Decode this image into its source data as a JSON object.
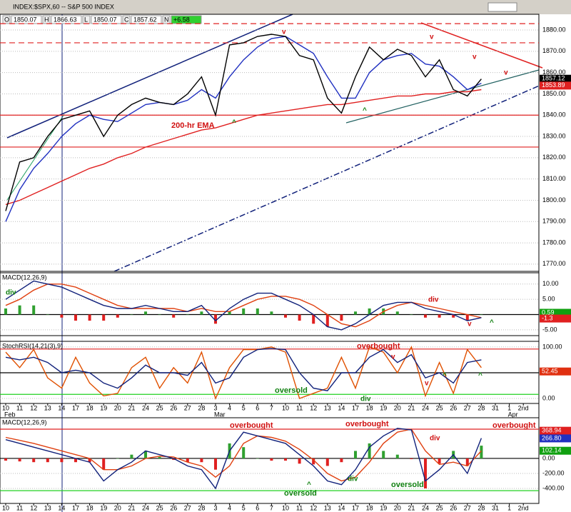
{
  "header": {
    "title": "INDEX:$SPX,60 -- S&P 500 INDEX",
    "quote": [
      {
        "label": "O",
        "value": 1850.07
      },
      {
        "label": "H",
        "value": 1866.63
      },
      {
        "label": "L",
        "value": 1850.07
      },
      {
        "label": "C",
        "value": 1857.62
      },
      {
        "label": "N",
        "value": 6.58,
        "value_label": "+6.58"
      }
    ]
  },
  "chart_data": [
    {
      "type": "line",
      "ylim": [
        1766.6,
        1887.4
      ],
      "yticks": [
        {
          "value": 1770,
          "label": "1770.00"
        },
        {
          "value": 1780,
          "label": "1780.00"
        },
        {
          "value": 1790,
          "label": "1790.00"
        },
        {
          "value": 1800,
          "label": "1800.00"
        },
        {
          "value": 1810,
          "label": "1810.00"
        },
        {
          "value": 1820,
          "label": "1820.00"
        },
        {
          "value": 1830,
          "label": "1830.00"
        },
        {
          "value": 1840,
          "label": "1840.00"
        },
        {
          "value": 1850,
          "label": "1850.00"
        },
        {
          "value": 1860,
          "label": "1860.00"
        },
        {
          "value": 1870,
          "label": "1870.00"
        },
        {
          "value": 1880,
          "label": "1880.00"
        }
      ],
      "grid": true,
      "series": [
        {
          "color": "#e02020",
          "style": "line",
          "values": [
            1798,
            1800,
            1803,
            1806,
            1809,
            1812,
            1815,
            1817,
            1820,
            1822,
            1825,
            1827,
            1829,
            1831,
            1833,
            1834,
            1836,
            1838,
            1840,
            1841,
            1842,
            1843,
            1844,
            1845,
            1845,
            1846,
            1847,
            1848,
            1849,
            1849,
            1850,
            1850,
            1851,
            1851,
            1852,
            null,
            null,
            null
          ]
        },
        {
          "color": "#2030c0",
          "style": "line",
          "values": [
            1790,
            1805,
            1815,
            1822,
            1830,
            1836,
            1840,
            1838,
            1837,
            1841,
            1845,
            1846,
            1845,
            1847,
            1852,
            1848,
            1858,
            1866,
            1872,
            1876,
            1877,
            1873,
            1869,
            1858,
            1848,
            1848,
            1860,
            1866,
            1868,
            1869,
            1864,
            1863,
            1858,
            1852,
            1855,
            null,
            null,
            null
          ]
        },
        {
          "color": "#000000",
          "style": "line",
          "values": [
            1795,
            1818,
            1820,
            1830,
            1838,
            1840,
            1842,
            1830,
            1840,
            1845,
            1848,
            1846,
            1845,
            1850,
            1858,
            1840,
            1873,
            1874,
            1877,
            1878,
            1877,
            1868,
            1866,
            1848,
            1841,
            1858,
            1872,
            1866,
            1871,
            1868,
            1858,
            1866,
            1852,
            1849,
            1857,
            null,
            null,
            null
          ]
        }
      ],
      "levels": [
        {
          "value": 1840,
          "color": "#e02020",
          "dashed": false
        },
        {
          "value": 1825,
          "color": "#e02020",
          "dashed": false
        },
        {
          "value": 1883,
          "color": "#e02020",
          "dashed": true
        },
        {
          "value": 1874,
          "color": "#e02020",
          "dashed": true
        }
      ],
      "flags": [
        {
          "value": 1857.12,
          "color": "#000000"
        },
        {
          "value": 1853.89,
          "color": "#e02020"
        }
      ],
      "annotations": [
        {
          "text": "200-hr EMA",
          "color": "#d01010"
        },
        {
          "text": "v",
          "color": "#d01010"
        },
        {
          "text": "v",
          "color": "#d01010"
        },
        {
          "text": "v",
          "color": "#d01010"
        },
        {
          "text": "v",
          "color": "#d01010"
        },
        {
          "text": "^",
          "color": "#108010"
        },
        {
          "text": "^",
          "color": "#108010"
        }
      ]
    },
    {
      "type": "line",
      "title": "MACD(12,26,9)",
      "ylim": [
        -6.9,
        13.7
      ],
      "yticks": [
        {
          "value": -5,
          "label": "-5.00"
        },
        {
          "value": 5,
          "label": "5.00"
        },
        {
          "value": 10,
          "label": "10.00"
        }
      ],
      "grid": true,
      "series": [
        {
          "color": "#30a030",
          "style": "bars",
          "values": [
            2,
            3,
            3,
            0,
            -1,
            -2,
            -2,
            -2,
            -1,
            0,
            1,
            0,
            -1,
            0,
            1,
            -3,
            1,
            2,
            2,
            1,
            -1,
            -2,
            -3,
            -4,
            -2,
            1,
            2,
            2,
            1,
            0,
            -1,
            -1,
            -1,
            -2,
            0,
            null,
            null,
            null
          ]
        },
        {
          "color": "#e04010",
          "style": "line",
          "values": [
            3,
            5,
            8,
            10,
            10,
            9,
            7,
            5,
            3,
            2,
            2,
            2,
            2,
            1,
            2,
            1,
            1,
            3,
            5,
            6,
            6,
            5,
            3,
            0,
            -3,
            -4,
            -2,
            1,
            3,
            4,
            3,
            2,
            1,
            0,
            -1,
            null,
            null,
            null
          ]
        },
        {
          "color": "#10207a",
          "style": "line",
          "values": [
            5,
            8,
            11,
            10,
            9,
            7,
            5,
            3,
            2,
            2,
            3,
            2,
            1,
            1,
            3,
            -2,
            2,
            5,
            7,
            7,
            5,
            3,
            0,
            -4,
            -5,
            -3,
            0,
            3,
            4,
            4,
            2,
            1,
            0,
            -2,
            -1,
            null,
            null,
            null
          ]
        }
      ],
      "levels": [
        {
          "value": 0,
          "color": "#000000",
          "dashed": false
        }
      ],
      "flags": [
        {
          "value": 0.59,
          "color": "#10a010"
        },
        {
          "value": -1.3,
          "color": "#e02020"
        }
      ],
      "annotations": [
        {
          "text": "div",
          "color": "#108010"
        },
        {
          "text": "div",
          "color": "#d01010"
        },
        {
          "text": "v",
          "color": "#d01010"
        },
        {
          "text": "^",
          "color": "#108010"
        }
      ]
    },
    {
      "type": "line",
      "title": "StochRSI(14,21(3),9)",
      "categories": [
        "10",
        "11",
        "12",
        "13",
        "14",
        "17",
        "18",
        "19",
        "20",
        "21",
        "24",
        "25",
        "26",
        "27",
        "28",
        "3",
        "4",
        "5",
        "6",
        "7",
        "10",
        "11",
        "12",
        "13",
        "14",
        "17",
        "18",
        "19",
        "20",
        "21",
        "24",
        "25",
        "26",
        "27",
        "28",
        "31",
        "1",
        "2nd"
      ],
      "month_labels": [
        "Feb",
        "Mar",
        "Apr"
      ],
      "ylim": [
        -9.7,
        111
      ],
      "yticks": [
        {
          "value": 0,
          "label": "0.00"
        },
        {
          "value": 100,
          "label": "100.00"
        }
      ],
      "grid": true,
      "series": [
        {
          "color": "#e05000",
          "style": "line",
          "values": [
            90,
            60,
            95,
            40,
            20,
            80,
            30,
            5,
            10,
            60,
            80,
            20,
            60,
            30,
            90,
            0,
            60,
            95,
            95,
            100,
            90,
            0,
            10,
            20,
            80,
            20,
            100,
            90,
            50,
            100,
            5,
            70,
            10,
            95,
            60,
            null,
            null,
            null
          ]
        },
        {
          "color": "#10207a",
          "style": "line",
          "values": [
            80,
            75,
            80,
            70,
            50,
            55,
            50,
            30,
            20,
            40,
            65,
            50,
            50,
            45,
            70,
            30,
            40,
            80,
            95,
            97,
            95,
            50,
            20,
            15,
            50,
            50,
            80,
            95,
            70,
            85,
            40,
            50,
            30,
            70,
            75,
            null,
            null,
            null
          ]
        }
      ],
      "levels": [
        {
          "value": 96,
          "color": "#e02020",
          "dashed": false
        },
        {
          "value": 50,
          "color": "#000000",
          "dashed": false
        },
        {
          "value": 8,
          "color": "#20d020",
          "dashed": false
        }
      ],
      "flags": [
        {
          "value": 52.45,
          "color": "#e03010"
        }
      ],
      "annotations": [
        {
          "text": "overbought",
          "color": "#d01010"
        },
        {
          "text": "oversold",
          "color": "#108010"
        },
        {
          "text": "div",
          "color": "#108010"
        },
        {
          "text": "v",
          "color": "#d01010"
        },
        {
          "text": "v",
          "color": "#d01010"
        },
        {
          "text": "^",
          "color": "#108010"
        },
        {
          "text": "^",
          "color": "#108010"
        }
      ]
    },
    {
      "type": "line",
      "title": "MACD(12,26,9)",
      "categories": [
        "10",
        "11",
        "12",
        "13",
        "14",
        "17",
        "18",
        "19",
        "20",
        "21",
        "24",
        "25",
        "26",
        "27",
        "28",
        "3",
        "4",
        "5",
        "6",
        "7",
        "10",
        "11",
        "12",
        "13",
        "14",
        "17",
        "18",
        "19",
        "20",
        "21",
        "24",
        "25",
        "26",
        "27",
        "28",
        "31",
        "1",
        "2nd"
      ],
      "month_labels": [
        "Feb",
        "Mar",
        "Apr"
      ],
      "ylim": [
        -600,
        542
      ],
      "yticks": [
        {
          "value": -400,
          "label": "-400.00"
        },
        {
          "value": -200,
          "label": "-200.00"
        },
        {
          "value": 0,
          "label": "0.00"
        }
      ],
      "grid": true,
      "series": [
        {
          "color": "#30a030",
          "style": "bars",
          "values": [
            -30,
            -40,
            -50,
            -50,
            -50,
            -50,
            -50,
            -150,
            0,
            50,
            100,
            20,
            -20,
            -50,
            -50,
            -150,
            200,
            150,
            0,
            -30,
            -30,
            -70,
            -80,
            -100,
            -50,
            100,
            200,
            100,
            50,
            -10,
            -400,
            -70,
            100,
            -100,
            170,
            null,
            null,
            null
          ]
        },
        {
          "color": "#e04010",
          "style": "line",
          "values": [
            280,
            240,
            200,
            150,
            100,
            50,
            0,
            -150,
            -150,
            -100,
            0,
            30,
            20,
            -50,
            -100,
            -250,
            -100,
            200,
            300,
            280,
            230,
            120,
            -20,
            -200,
            -300,
            -250,
            -50,
            200,
            350,
            390,
            100,
            -80,
            -50,
            -100,
            100,
            null,
            null,
            null
          ]
        },
        {
          "color": "#10207a",
          "style": "line",
          "values": [
            250,
            200,
            150,
            100,
            50,
            0,
            -50,
            -300,
            -150,
            -50,
            100,
            50,
            0,
            -100,
            -150,
            -400,
            100,
            350,
            300,
            250,
            200,
            50,
            -100,
            -300,
            -350,
            -150,
            150,
            300,
            400,
            380,
            -300,
            -150,
            50,
            -200,
            270,
            null,
            null,
            null
          ]
        }
      ],
      "levels": [
        {
          "value": 390,
          "color": "#e02020",
          "dashed": false
        },
        {
          "value": 0,
          "color": "#000000",
          "dashed": false
        },
        {
          "value": -430,
          "color": "#20d020",
          "dashed": false
        }
      ],
      "flags": [
        {
          "value": 368.94,
          "color": "#e02020"
        },
        {
          "value": 266.8,
          "label": "266.80",
          "color": "#2030c0"
        },
        {
          "value": 102.14,
          "color": "#10a010"
        }
      ],
      "annotations": [
        {
          "text": "overbought",
          "color": "#d01010"
        },
        {
          "text": "overbought",
          "color": "#d01010"
        },
        {
          "text": "overbought",
          "color": "#d01010"
        },
        {
          "text": "oversold",
          "color": "#108010"
        },
        {
          "text": "oversold",
          "color": "#108010"
        },
        {
          "text": "div",
          "color": "#108010"
        },
        {
          "text": "div",
          "color": "#d01010"
        },
        {
          "text": "^",
          "color": "#108010"
        }
      ]
    }
  ]
}
